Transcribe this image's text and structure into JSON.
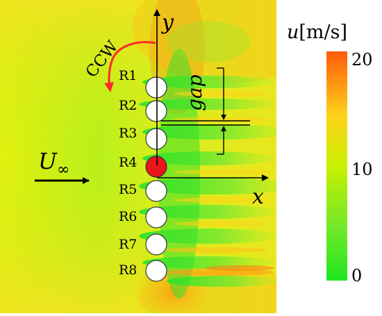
{
  "diagram": {
    "rotation_label": "CCW",
    "axis_x_label": "x",
    "axis_y_label": "y",
    "gap_label": "gap",
    "freestream_symbol": "U",
    "freestream_subscript": "∞",
    "rod_labels": [
      "R1",
      "R2",
      "R3",
      "R4",
      "R5",
      "R6",
      "R7",
      "R8"
    ],
    "highlighted_rod": "R4",
    "highlight_color": "#e8151b",
    "rotation_arrow_color": "#ff2a2a"
  },
  "colorbar": {
    "variable": "u",
    "unit": "[m/s]",
    "tick_labels": [
      "20",
      "10",
      "0"
    ],
    "max": 20,
    "mid": 10,
    "min": 0,
    "colors": {
      "max": "#ff5a0a",
      "upper": "#ffd21a",
      "mid": "#c8f000",
      "min": "#1ee81e"
    }
  }
}
